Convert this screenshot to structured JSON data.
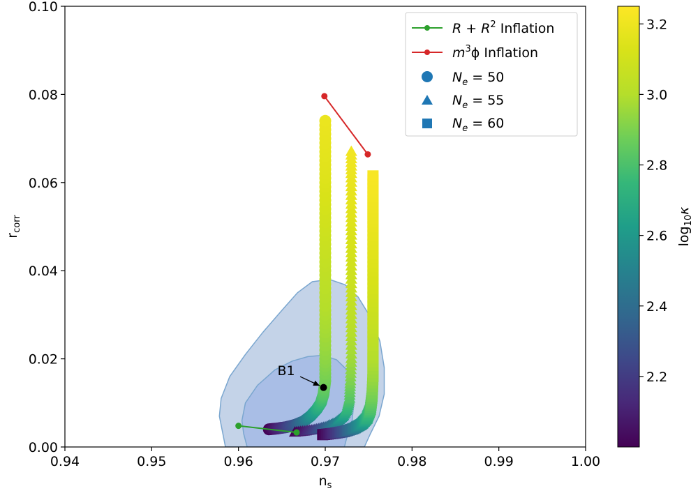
{
  "chart_data": {
    "type": "scatter",
    "xlabel": "n",
    "xlabel_sub": "s",
    "ylabel": "r",
    "ylabel_sub": "corr",
    "xlim": [
      0.94,
      1.0
    ],
    "ylim": [
      0.0,
      0.1
    ],
    "x_ticks": [
      "0.94",
      "0.95",
      "0.96",
      "0.97",
      "0.98",
      "0.99",
      "1.00"
    ],
    "y_ticks": [
      "0.00",
      "0.02",
      "0.04",
      "0.06",
      "0.08",
      "0.10"
    ],
    "grid": false,
    "legend_placement": "top-right",
    "contours": [
      {
        "level": "outer",
        "fill": "#c4d3e8",
        "stroke": "#7aa6cf",
        "points": [
          [
            0.9585,
            0.0
          ],
          [
            0.9582,
            0.003
          ],
          [
            0.9578,
            0.007
          ],
          [
            0.958,
            0.011
          ],
          [
            0.959,
            0.016
          ],
          [
            0.9608,
            0.021
          ],
          [
            0.9628,
            0.026
          ],
          [
            0.965,
            0.031
          ],
          [
            0.9668,
            0.035
          ],
          [
            0.9685,
            0.0375
          ],
          [
            0.9705,
            0.038
          ],
          [
            0.9723,
            0.0368
          ],
          [
            0.9738,
            0.034
          ],
          [
            0.9752,
            0.0295
          ],
          [
            0.9763,
            0.024
          ],
          [
            0.9768,
            0.018
          ],
          [
            0.9768,
            0.012
          ],
          [
            0.9762,
            0.007
          ],
          [
            0.9752,
            0.003
          ],
          [
            0.9745,
            0.0
          ]
        ]
      },
      {
        "level": "inner",
        "fill": "#a9bee6",
        "stroke": "#7aa6cf",
        "points": [
          [
            0.961,
            0.0
          ],
          [
            0.9606,
            0.003
          ],
          [
            0.9604,
            0.006
          ],
          [
            0.9608,
            0.01
          ],
          [
            0.9622,
            0.014
          ],
          [
            0.9642,
            0.0175
          ],
          [
            0.9662,
            0.0195
          ],
          [
            0.968,
            0.0205
          ],
          [
            0.9697,
            0.0208
          ],
          [
            0.9713,
            0.0198
          ],
          [
            0.9725,
            0.0175
          ],
          [
            0.9731,
            0.014
          ],
          [
            0.9733,
            0.01
          ],
          [
            0.9731,
            0.006
          ],
          [
            0.9726,
            0.003
          ],
          [
            0.9722,
            0.0
          ]
        ]
      }
    ],
    "colorbar": {
      "label": "log",
      "label_sub": "10",
      "label_suffix": "κ",
      "range": [
        2.0,
        3.25
      ],
      "ticks": [
        "2.2",
        "2.4",
        "2.6",
        "2.8",
        "3.0",
        "3.2"
      ]
    },
    "series": [
      {
        "name": "N",
        "name_sub": "e",
        "name_suffix": " = 50",
        "marker": "circle",
        "points": [
          [
            0.9635,
            0.004,
            2.0
          ],
          [
            0.9645,
            0.0042,
            2.1
          ],
          [
            0.9655,
            0.0045,
            2.2
          ],
          [
            0.9665,
            0.005,
            2.3
          ],
          [
            0.9675,
            0.0058,
            2.42
          ],
          [
            0.9683,
            0.007,
            2.55
          ],
          [
            0.969,
            0.0085,
            2.66
          ],
          [
            0.9695,
            0.01,
            2.75
          ],
          [
            0.9698,
            0.012,
            2.82
          ],
          [
            0.97,
            0.015,
            2.88
          ],
          [
            0.97,
            0.02,
            2.93
          ],
          [
            0.97,
            0.026,
            2.97
          ],
          [
            0.97,
            0.032,
            3.0
          ],
          [
            0.97,
            0.038,
            3.03
          ],
          [
            0.97,
            0.044,
            3.06
          ],
          [
            0.97,
            0.05,
            3.09
          ],
          [
            0.97,
            0.056,
            3.12
          ],
          [
            0.97,
            0.062,
            3.15
          ],
          [
            0.97,
            0.068,
            3.17
          ],
          [
            0.97,
            0.074,
            3.19
          ]
        ]
      },
      {
        "name": "N",
        "name_sub": "e",
        "name_suffix": " = 55",
        "marker": "triangle",
        "points": [
          [
            0.9665,
            0.0033,
            2.0
          ],
          [
            0.9678,
            0.0036,
            2.12
          ],
          [
            0.969,
            0.004,
            2.25
          ],
          [
            0.9702,
            0.0046,
            2.38
          ],
          [
            0.9712,
            0.0055,
            2.5
          ],
          [
            0.972,
            0.0068,
            2.62
          ],
          [
            0.9725,
            0.0085,
            2.73
          ],
          [
            0.9728,
            0.011,
            2.82
          ],
          [
            0.9729,
            0.015,
            2.9
          ],
          [
            0.973,
            0.02,
            2.96
          ],
          [
            0.973,
            0.026,
            3.0
          ],
          [
            0.973,
            0.032,
            3.04
          ],
          [
            0.973,
            0.038,
            3.08
          ],
          [
            0.973,
            0.044,
            3.11
          ],
          [
            0.973,
            0.05,
            3.14
          ],
          [
            0.973,
            0.056,
            3.17
          ],
          [
            0.973,
            0.062,
            3.19
          ],
          [
            0.973,
            0.067,
            3.21
          ]
        ]
      },
      {
        "name": "N",
        "name_sub": "e",
        "name_suffix": " = 60",
        "marker": "square",
        "points": [
          [
            0.9697,
            0.0028,
            2.0
          ],
          [
            0.971,
            0.0031,
            2.15
          ],
          [
            0.9722,
            0.0035,
            2.3
          ],
          [
            0.9733,
            0.0042,
            2.45
          ],
          [
            0.9742,
            0.0052,
            2.58
          ],
          [
            0.9748,
            0.0065,
            2.7
          ],
          [
            0.9752,
            0.0085,
            2.8
          ],
          [
            0.9754,
            0.0115,
            2.88
          ],
          [
            0.9755,
            0.016,
            2.95
          ],
          [
            0.9755,
            0.021,
            3.0
          ],
          [
            0.9755,
            0.027,
            3.05
          ],
          [
            0.9755,
            0.033,
            3.09
          ],
          [
            0.9755,
            0.039,
            3.13
          ],
          [
            0.9755,
            0.045,
            3.16
          ],
          [
            0.9755,
            0.051,
            3.19
          ],
          [
            0.9755,
            0.056,
            3.21
          ],
          [
            0.9755,
            0.0615,
            3.23
          ]
        ]
      }
    ],
    "lines": [
      {
        "name_main": "R + R",
        "name_sup": "2",
        "name_rest": " Inflation",
        "color": "#2ca02c",
        "points": [
          [
            0.96,
            0.0048
          ],
          [
            0.9667,
            0.0033
          ]
        ]
      },
      {
        "name_main": "m",
        "name_sup": "3",
        "name_rest": "ϕ Inflation",
        "color": "#d62728",
        "points": [
          [
            0.9699,
            0.0796
          ],
          [
            0.9749,
            0.0664
          ]
        ]
      }
    ],
    "legend_marker_color": "#1f77b4",
    "annotations": [
      {
        "text": "B1",
        "point": [
          0.9698,
          0.0135
        ],
        "text_pos": [
          0.9655,
          0.0185
        ],
        "point_color": "#000000"
      }
    ]
  }
}
